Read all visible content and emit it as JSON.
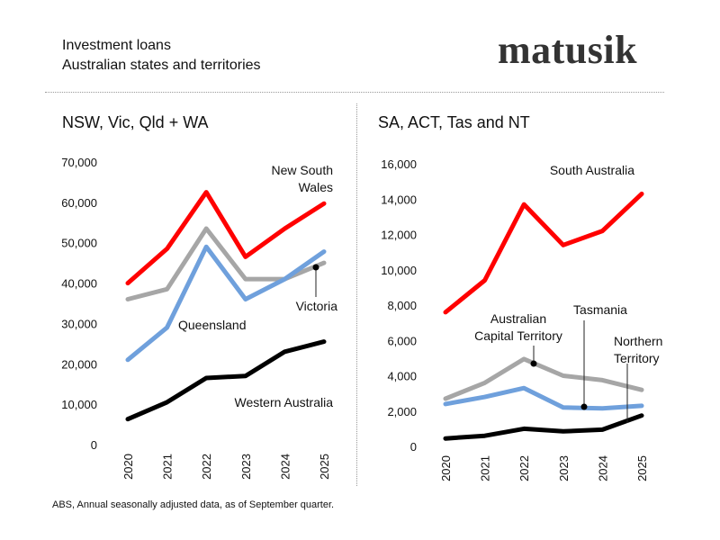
{
  "header": {
    "title": "Investment loans",
    "subtitle": "Australian states and territories",
    "logo": "matusik"
  },
  "source": "ABS, Annual seasonally adjusted data, as of September quarter.",
  "chart_data": [
    {
      "type": "line",
      "title": "NSW, Vic, Qld + WA",
      "x": [
        "2020",
        "2021",
        "2022",
        "2023",
        "2024",
        "2025"
      ],
      "ylim": [
        0,
        70000
      ],
      "yticks": [
        "0",
        "10,000",
        "20,000",
        "30,000",
        "40,000",
        "50,000",
        "60,000",
        "70,000"
      ],
      "grid": false,
      "series": [
        {
          "name": "New South Wales",
          "label_lines": [
            "New South",
            "Wales"
          ],
          "color": "#ff0000",
          "values": [
            40000,
            48500,
            62500,
            46500,
            53500,
            59700
          ]
        },
        {
          "name": "Victoria",
          "label_lines": [
            "Victoria"
          ],
          "color": "#a6a6a6",
          "values": [
            36000,
            38500,
            53500,
            41000,
            41000,
            45000
          ]
        },
        {
          "name": "Queensland",
          "label_lines": [
            "Queensland"
          ],
          "color": "#6fa0dc",
          "values": [
            21000,
            29000,
            49000,
            36000,
            41000,
            47800
          ]
        },
        {
          "name": "Western Australia",
          "label_lines": [
            "Western Australia"
          ],
          "color": "#000000",
          "values": [
            6300,
            10500,
            16500,
            17000,
            23000,
            25500
          ]
        }
      ]
    },
    {
      "type": "line",
      "title": "SA, ACT, Tas and NT",
      "x": [
        "2020",
        "2021",
        "2022",
        "2023",
        "2024",
        "2025"
      ],
      "ylim": [
        0,
        16000
      ],
      "yticks": [
        "0",
        "2,000",
        "4,000",
        "6,000",
        "8,000",
        "10,000",
        "12,000",
        "14,000",
        "16,000"
      ],
      "grid": false,
      "series": [
        {
          "name": "South Australia",
          "label_lines": [
            "South Australia"
          ],
          "color": "#ff0000",
          "values": [
            7600,
            9400,
            13700,
            11400,
            12200,
            14300
          ]
        },
        {
          "name": "Australian Capital Territory",
          "label_lines": [
            "Australian",
            "Capital Territory"
          ],
          "color": "#a6a6a6",
          "values": [
            2700,
            3600,
            4950,
            4000,
            3750,
            3200
          ]
        },
        {
          "name": "Tasmania",
          "label_lines": [
            "Tasmania"
          ],
          "color": "#6fa0dc",
          "values": [
            2400,
            2800,
            3300,
            2200,
            2150,
            2300
          ]
        },
        {
          "name": "Northern Territory",
          "label_lines": [
            "Northern",
            "Territory"
          ],
          "color": "#000000",
          "values": [
            450,
            600,
            1000,
            850,
            950,
            1750
          ]
        }
      ]
    }
  ]
}
